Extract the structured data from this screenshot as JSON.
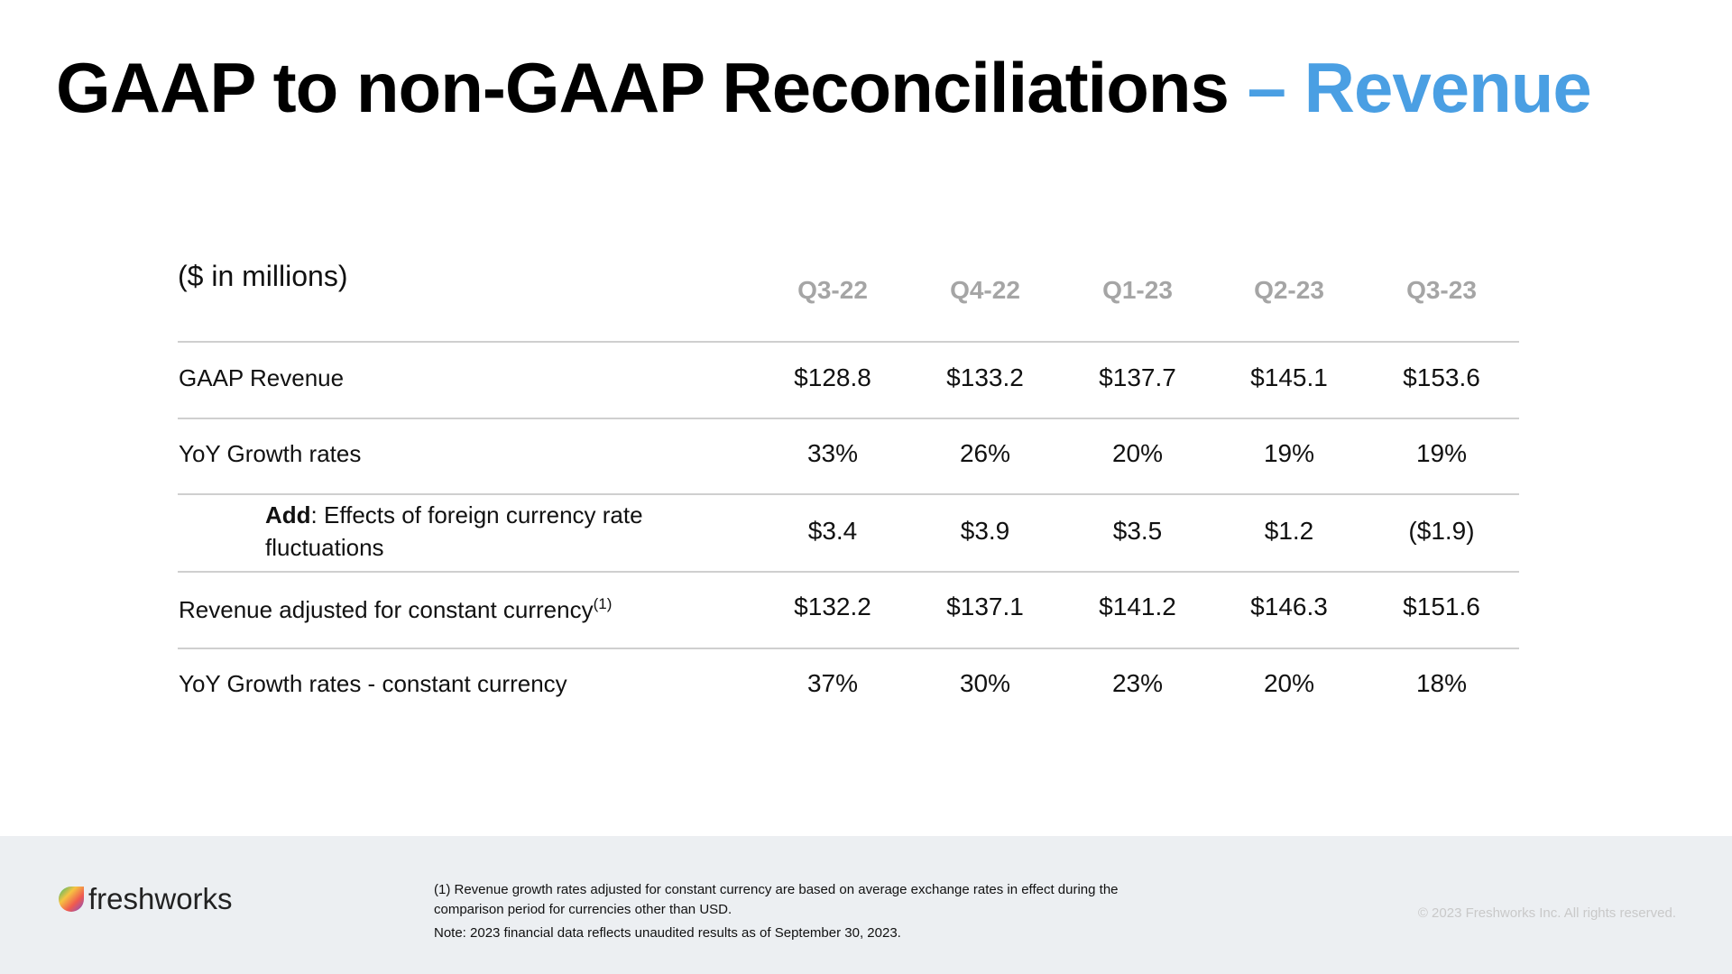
{
  "title": {
    "main": "GAAP to non-GAAP Reconciliations",
    "accent": "– Revenue"
  },
  "table": {
    "unit_label": "($ in millions)",
    "columns": [
      "Q3-22",
      "Q4-22",
      "Q1-23",
      "Q2-23",
      "Q3-23"
    ],
    "rows": [
      {
        "label": "GAAP Revenue",
        "cells": [
          "$128.8",
          "$133.2",
          "$137.7",
          "$145.1",
          "$153.6"
        ]
      },
      {
        "label": "YoY Growth rates",
        "cells": [
          "33%",
          "26%",
          "20%",
          "19%",
          "19%"
        ]
      },
      {
        "label_bold": "Add",
        "label": ": Effects of foreign currency rate fluctuations",
        "cells": [
          "$3.4",
          "$3.9",
          "$3.5",
          "$1.2",
          "($1.9)"
        ]
      },
      {
        "label": "Revenue adjusted for constant currency",
        "superscript": "(1)",
        "cells": [
          "$132.2",
          "$137.1",
          "$141.2",
          "$146.3",
          "$151.6"
        ]
      },
      {
        "label": "YoY Growth rates - constant currency",
        "cells": [
          "37%",
          "30%",
          "23%",
          "20%",
          "18%"
        ]
      }
    ]
  },
  "footer": {
    "logo": "freshworks",
    "footnote": "(1) Revenue growth rates adjusted for constant currency are based on average exchange rates in effect during the comparison period for currencies other than USD.",
    "note": "Note: 2023 financial data reflects unaudited results as of September 30, 2023.",
    "copyright": "© 2023 Freshworks Inc. All rights reserved."
  }
}
